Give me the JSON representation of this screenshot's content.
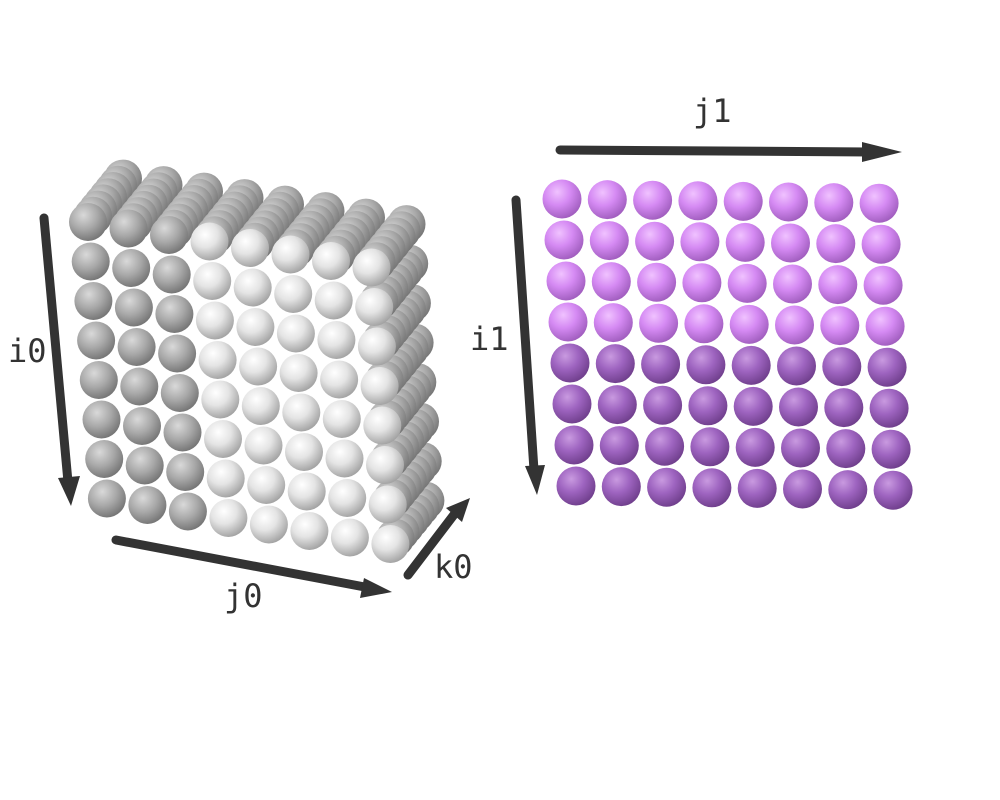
{
  "labels": {
    "i0": "i0",
    "j0": "j0",
    "k0": "k0",
    "i1": "i1",
    "j1": "j1"
  },
  "cube": {
    "rows": 8,
    "cols": 8,
    "depth": 8,
    "color": "#f2f2f2",
    "shade_color": "#5a5a5a"
  },
  "grid": {
    "rows": 8,
    "cols": 8,
    "color_top": "#d98cf5",
    "color_bottom": "#9a5cc0"
  },
  "colors": {
    "axis": "#333333"
  }
}
